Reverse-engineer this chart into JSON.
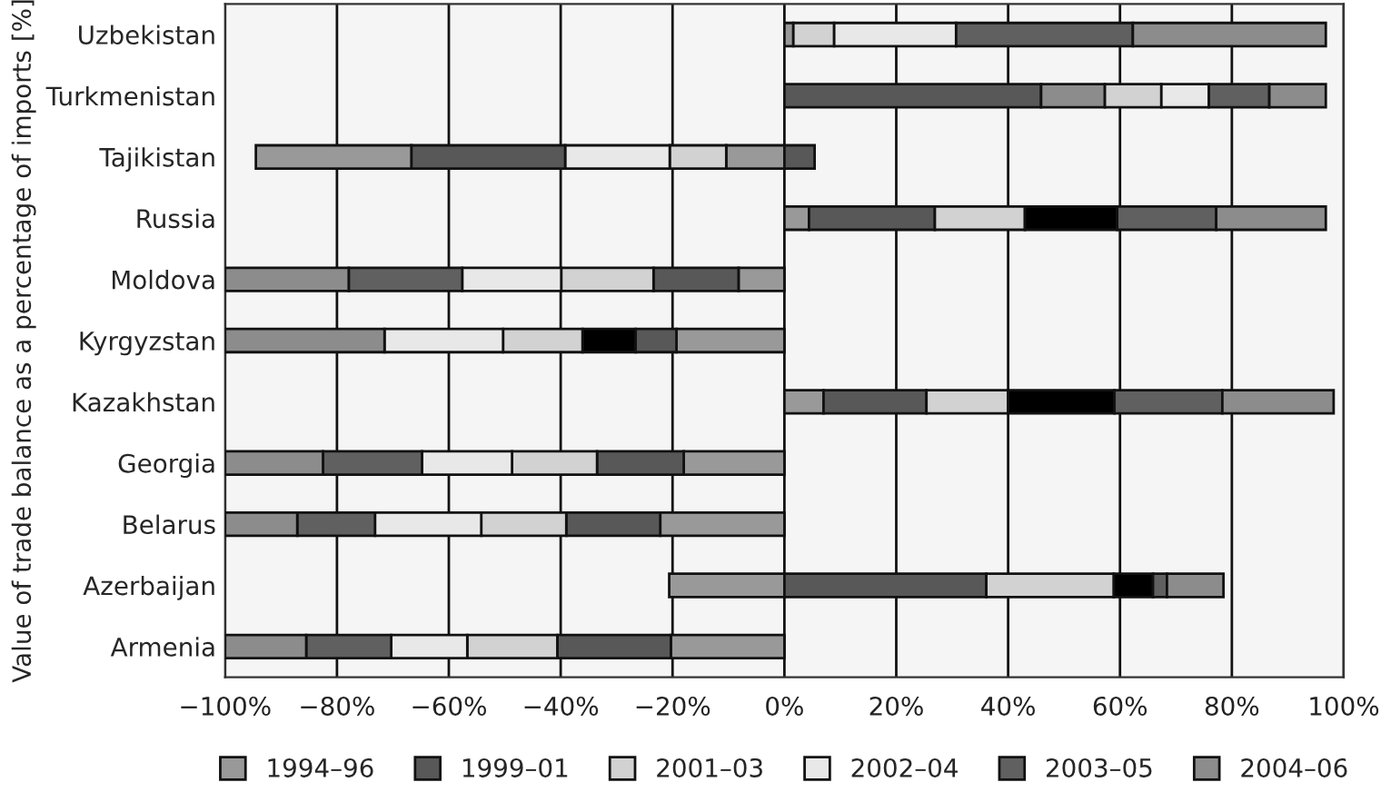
{
  "chart_data": {
    "type": "bar",
    "orientation": "horizontal",
    "stacked": true,
    "ylabel": "Value of trade balance as a percentage of imports [%]",
    "categories": [
      "Uzbekistan",
      "Turkmenistan",
      "Tajikistan",
      "Russia",
      "Moldova",
      "Kyrgyzstan",
      "Kazakhstan",
      "Georgia",
      "Belarus",
      "Azerbaijan",
      "Armenia"
    ],
    "series": [
      {
        "name": "1994–96",
        "color": "#999999",
        "values": [
          1.6,
          45.9,
          -10.4,
          4.4,
          -8.2,
          -19.3,
          7.0,
          -18.0,
          -22.2,
          -20.6,
          -20.3
        ],
        "colors": [
          "#999999",
          "#585858",
          "#999999",
          "#999999",
          "#999999",
          "#999999",
          "#999999",
          "#999999",
          "#999999",
          "#999999",
          "#999999"
        ]
      },
      {
        "name": "1999–01",
        "color": "#585858",
        "values": [
          null,
          11.4,
          -10.1,
          22.5,
          -15.2,
          -7.3,
          18.4,
          -15.5,
          -16.8,
          36.1,
          -20.3
        ],
        "colors": [
          "#585858",
          "#8c8c8c",
          "#d2d2d2",
          "#585858",
          "#585858",
          "#585858",
          "#585858",
          "#585858",
          "#585858",
          "#585858",
          "#585858"
        ]
      },
      {
        "name": "2001–03",
        "color": "#d2d2d2",
        "values": [
          7.3,
          10.1,
          -18.7,
          16.1,
          -16.5,
          -9.5,
          14.6,
          -15.2,
          -15.2,
          22.8,
          -16.1
        ],
        "colors": [
          "#d2d2d2",
          "#d2d2d2",
          "#e8e8e8",
          "#d2d2d2",
          "#d2d2d2",
          "#000000",
          "#d2d2d2",
          "#d2d2d2",
          "#d2d2d2",
          "#d2d2d2",
          "#d2d2d2"
        ]
      },
      {
        "name": "2002–04",
        "color": "#e8e8e8",
        "values": [
          21.8,
          8.5,
          -27.5,
          16.5,
          -17.7,
          -14.2,
          19.0,
          -16.1,
          -19.0,
          7.0,
          -13.6
        ],
        "colors": [
          "#e8e8e8",
          "#e8e8e8",
          "#585858",
          "#000000",
          "#e8e8e8",
          "#d2d2d2",
          "#000000",
          "#e8e8e8",
          "#e8e8e8",
          "#000000",
          "#e8e8e8"
        ]
      },
      {
        "name": "2003–05",
        "color": "#606060",
        "values": [
          31.6,
          10.8,
          -27.8,
          17.7,
          -20.3,
          -21.2,
          19.3,
          -17.7,
          -13.9,
          2.5,
          -15.2
        ],
        "colors": [
          "#606060",
          "#606060",
          "#999999",
          "#606060",
          "#606060",
          "#e8e8e8",
          "#606060",
          "#606060",
          "#606060",
          "#606060",
          "#606060"
        ]
      },
      {
        "name": "2004–06",
        "color": "#8c8c8c",
        "values": [
          34.5,
          10.1,
          5.4,
          19.6,
          -22.1,
          -28.5,
          19.9,
          -17.5,
          -12.9,
          10.1,
          -14.5
        ],
        "colors": [
          "#8c8c8c",
          "#8c8c8c",
          "#585858",
          "#8c8c8c",
          "#8c8c8c",
          "#8c8c8c",
          "#8c8c8c",
          "#8c8c8c",
          "#8c8c8c",
          "#8c8c8c",
          "#8c8c8c"
        ]
      }
    ],
    "xlim": [
      -100,
      100
    ],
    "xticks": [
      {
        "value": -100,
        "label": "−100%"
      },
      {
        "value": -80,
        "label": "−80%"
      },
      {
        "value": -60,
        "label": "−60%"
      },
      {
        "value": -40,
        "label": "−40%"
      },
      {
        "value": -20,
        "label": "−20%"
      },
      {
        "value": 0,
        "label": "0%"
      },
      {
        "value": 20,
        "label": "20%"
      },
      {
        "value": 40,
        "label": "40%"
      },
      {
        "value": 60,
        "label": "60%"
      },
      {
        "value": 80,
        "label": "80%"
      },
      {
        "value": 100,
        "label": "100%"
      }
    ],
    "grid": "x",
    "legend": "bottom"
  }
}
